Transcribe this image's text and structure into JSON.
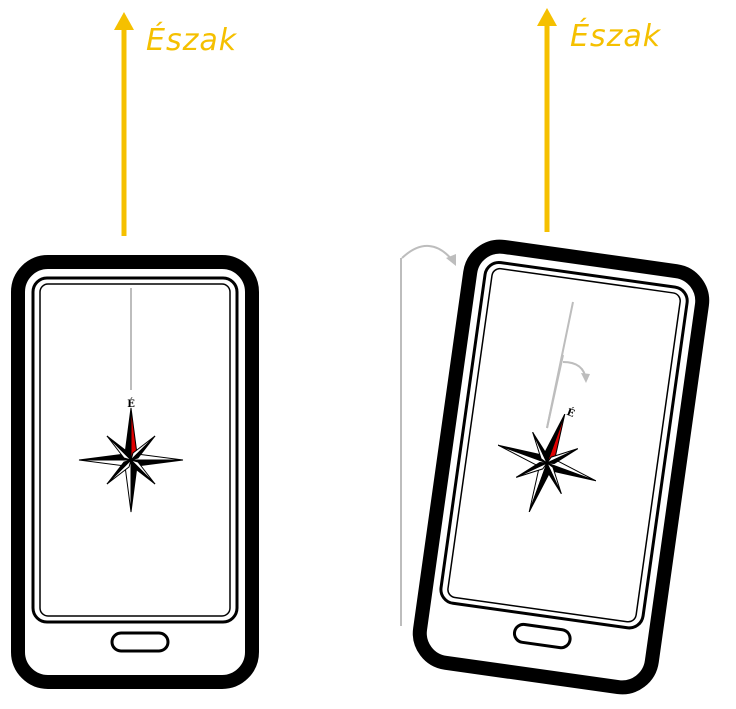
{
  "north_label": "Észak",
  "compass_letter": "É",
  "colors": {
    "north_arrow": "#f5c000",
    "compass_red": "#e00000",
    "guide_gray": "#bdbdbd",
    "phone_black": "#000000"
  },
  "icons": {
    "phone": "smartphone-icon",
    "compass": "compass-rose-icon",
    "north_arrow": "arrow-up-icon",
    "rotation": "rotate-arrow-icon"
  },
  "tilt_degrees": 8
}
